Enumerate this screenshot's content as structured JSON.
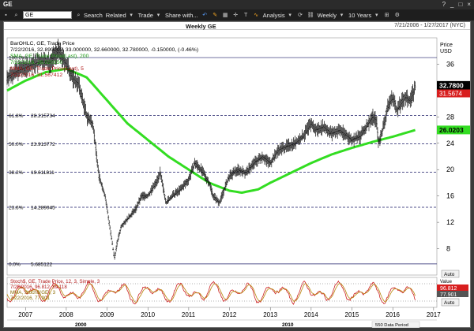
{
  "window": {
    "title": "GE",
    "controls": [
      "?",
      "_",
      "□",
      "×"
    ]
  },
  "toolbar": {
    "symbol_value": "GE",
    "search_label": "Search",
    "related_label": "Related",
    "trade_label": "Trade",
    "share_label": "Share with...",
    "analysis_label": "Analysis",
    "period_label": "Weekly",
    "range_label": "10 Years"
  },
  "chart_header": {
    "title": "Weekly GE",
    "date_range": "7/21/2006 - 1/27/2017 (NYC)"
  },
  "legend": {
    "line1": "BarOHLC, GE, Trade Price",
    "line2": "7/22/2016, 32.890000, 33.000000, 32.660000, 32.780000, -0.150000, (-0.46%)",
    "line3": "SMA, GE, Trade Price(Last), 200",
    "line4": "7/22/2016, 26.020350",
    "line5": "MMA, GE, Trade Price(Last), 5",
    "line6": "7/22/2016, 31.567412"
  },
  "price_axis": {
    "title_line1": "Price",
    "title_line2": "USD",
    "ticks": [
      "36",
      "32",
      "28",
      "24",
      "20",
      "16",
      "12",
      "8"
    ]
  },
  "price_tags": {
    "last": "32.7800",
    "mma": "31.5674",
    "sma": "26.0203"
  },
  "fib_levels": [
    {
      "pct": "100.0%",
      "value": "",
      "price": 37.0
    },
    {
      "pct": "61.8%",
      "value": "28.215734",
      "price": 28.215734
    },
    {
      "pct": "50.0%",
      "value": "23.913772",
      "price": 23.913772
    },
    {
      "pct": "38.2%",
      "value": "19.611811",
      "price": 19.611811
    },
    {
      "pct": "23.6%",
      "value": "14.289045",
      "price": 14.289045
    },
    {
      "pct": "0.0%",
      "value": "5.685122",
      "price": 5.685122
    }
  ],
  "auto_label": "Auto",
  "stoch": {
    "line1": "Stoch$, GE, Trade Price, 12, 3, Simple, 3",
    "line2": "7/22/2016, 96.812, 89.118",
    "line3": "MMA, Stoch$(GE), 3",
    "line4": "7/22/2016, 77.901",
    "value_label": "Value",
    "tag1": "96.812",
    "tag2": "77.901"
  },
  "x_axis": {
    "years": [
      "2007",
      "2008",
      "2009",
      "2010",
      "2011",
      "2012",
      "2013",
      "2014",
      "2015",
      "2016",
      "2017"
    ],
    "decades": [
      "2000",
      "2010"
    ],
    "footer": "550 Data Period"
  },
  "colors": {
    "sma": "#33dd22",
    "price": "#111111",
    "fib": "#1a1a66",
    "stoch_a": "#cc2222",
    "stoch_b": "#b8860b",
    "tag_red": "#d81e1e"
  },
  "chart_data": {
    "type": "line",
    "title": "Weekly GE",
    "ylabel": "Price USD",
    "ylim": [
      4,
      40
    ],
    "x_range_years": [
      2006.55,
      2017.08
    ],
    "series": [
      {
        "name": "GE",
        "points": [
          [
            2006.55,
            34.0
          ],
          [
            2006.8,
            35.0
          ],
          [
            2007.0,
            35.5
          ],
          [
            2007.2,
            36.0
          ],
          [
            2007.4,
            36.5
          ],
          [
            2007.6,
            36.2
          ],
          [
            2007.8,
            38.0
          ],
          [
            2008.0,
            36.0
          ],
          [
            2008.15,
            34.0
          ],
          [
            2008.3,
            33.0
          ],
          [
            2008.5,
            28.0
          ],
          [
            2008.65,
            27.0
          ],
          [
            2008.8,
            19.0
          ],
          [
            2008.95,
            16.0
          ],
          [
            2009.05,
            12.0
          ],
          [
            2009.12,
            9.0
          ],
          [
            2009.18,
            6.5
          ],
          [
            2009.25,
            9.0
          ],
          [
            2009.35,
            11.5
          ],
          [
            2009.5,
            12.5
          ],
          [
            2009.7,
            14.0
          ],
          [
            2009.85,
            16.0
          ],
          [
            2010.0,
            16.0
          ],
          [
            2010.2,
            18.0
          ],
          [
            2010.3,
            19.5
          ],
          [
            2010.45,
            15.0
          ],
          [
            2010.6,
            16.0
          ],
          [
            2010.8,
            17.0
          ],
          [
            2011.0,
            18.5
          ],
          [
            2011.15,
            21.0
          ],
          [
            2011.3,
            20.0
          ],
          [
            2011.5,
            18.0
          ],
          [
            2011.6,
            16.0
          ],
          [
            2011.75,
            15.0
          ],
          [
            2011.9,
            17.5
          ],
          [
            2012.0,
            19.0
          ],
          [
            2012.2,
            20.0
          ],
          [
            2012.4,
            19.5
          ],
          [
            2012.6,
            21.0
          ],
          [
            2012.8,
            22.0
          ],
          [
            2013.0,
            21.0
          ],
          [
            2013.2,
            23.0
          ],
          [
            2013.4,
            23.5
          ],
          [
            2013.6,
            24.0
          ],
          [
            2013.8,
            25.0
          ],
          [
            2014.0,
            27.0
          ],
          [
            2014.1,
            26.0
          ],
          [
            2014.3,
            26.5
          ],
          [
            2014.5,
            25.5
          ],
          [
            2014.7,
            26.0
          ],
          [
            2014.9,
            25.0
          ],
          [
            2015.0,
            24.5
          ],
          [
            2015.2,
            25.0
          ],
          [
            2015.4,
            27.0
          ],
          [
            2015.5,
            28.0
          ],
          [
            2015.6,
            27.5
          ],
          [
            2015.65,
            24.0
          ],
          [
            2015.75,
            26.0
          ],
          [
            2015.9,
            30.0
          ],
          [
            2016.0,
            31.0
          ],
          [
            2016.1,
            29.0
          ],
          [
            2016.2,
            30.0
          ],
          [
            2016.3,
            31.0
          ],
          [
            2016.4,
            30.5
          ],
          [
            2016.5,
            31.5
          ],
          [
            2016.56,
            32.78
          ]
        ]
      },
      {
        "name": "SMA 200",
        "points": [
          [
            2006.55,
            32.0
          ],
          [
            2007.0,
            33.5
          ],
          [
            2007.5,
            34.8
          ],
          [
            2008.0,
            35.3
          ],
          [
            2008.5,
            34.0
          ],
          [
            2009.0,
            30.5
          ],
          [
            2009.5,
            27.0
          ],
          [
            2010.0,
            24.5
          ],
          [
            2010.5,
            22.0
          ],
          [
            2011.0,
            20.0
          ],
          [
            2011.5,
            18.0
          ],
          [
            2012.0,
            16.8
          ],
          [
            2012.3,
            16.5
          ],
          [
            2012.7,
            17.0
          ],
          [
            2013.0,
            18.0
          ],
          [
            2013.5,
            19.5
          ],
          [
            2014.0,
            21.0
          ],
          [
            2014.5,
            22.3
          ],
          [
            2015.0,
            23.3
          ],
          [
            2015.5,
            24.2
          ],
          [
            2016.0,
            25.0
          ],
          [
            2016.56,
            26.02
          ]
        ]
      }
    ],
    "stoch_ylim": [
      0,
      100
    ]
  }
}
